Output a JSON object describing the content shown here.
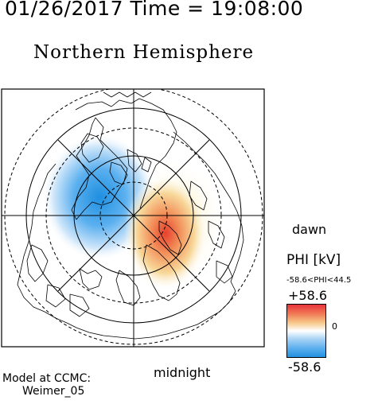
{
  "header": {
    "timestamp": "01/26/2017 Time = 19:08:00",
    "title": "Northern Hemisphere"
  },
  "map": {
    "labels": {
      "dawn": "dawn",
      "midnight": "midnight"
    },
    "potential_pattern": {
      "dusk_cell": "negative (blue)",
      "dawn_cell": "positive (red)"
    }
  },
  "colorbar": {
    "title": "PHI [kV]",
    "range_text": "-58.6<PHI<44.5",
    "max_label": "+58.6",
    "mid_label": "0",
    "min_label": "-58.6",
    "colors": {
      "max": "#e8303a",
      "mid": "#ffffff",
      "min": "#1f8fe0"
    }
  },
  "footer": {
    "model_line1": "Model at CCMC:",
    "model_line2": "Weimer_05"
  }
}
